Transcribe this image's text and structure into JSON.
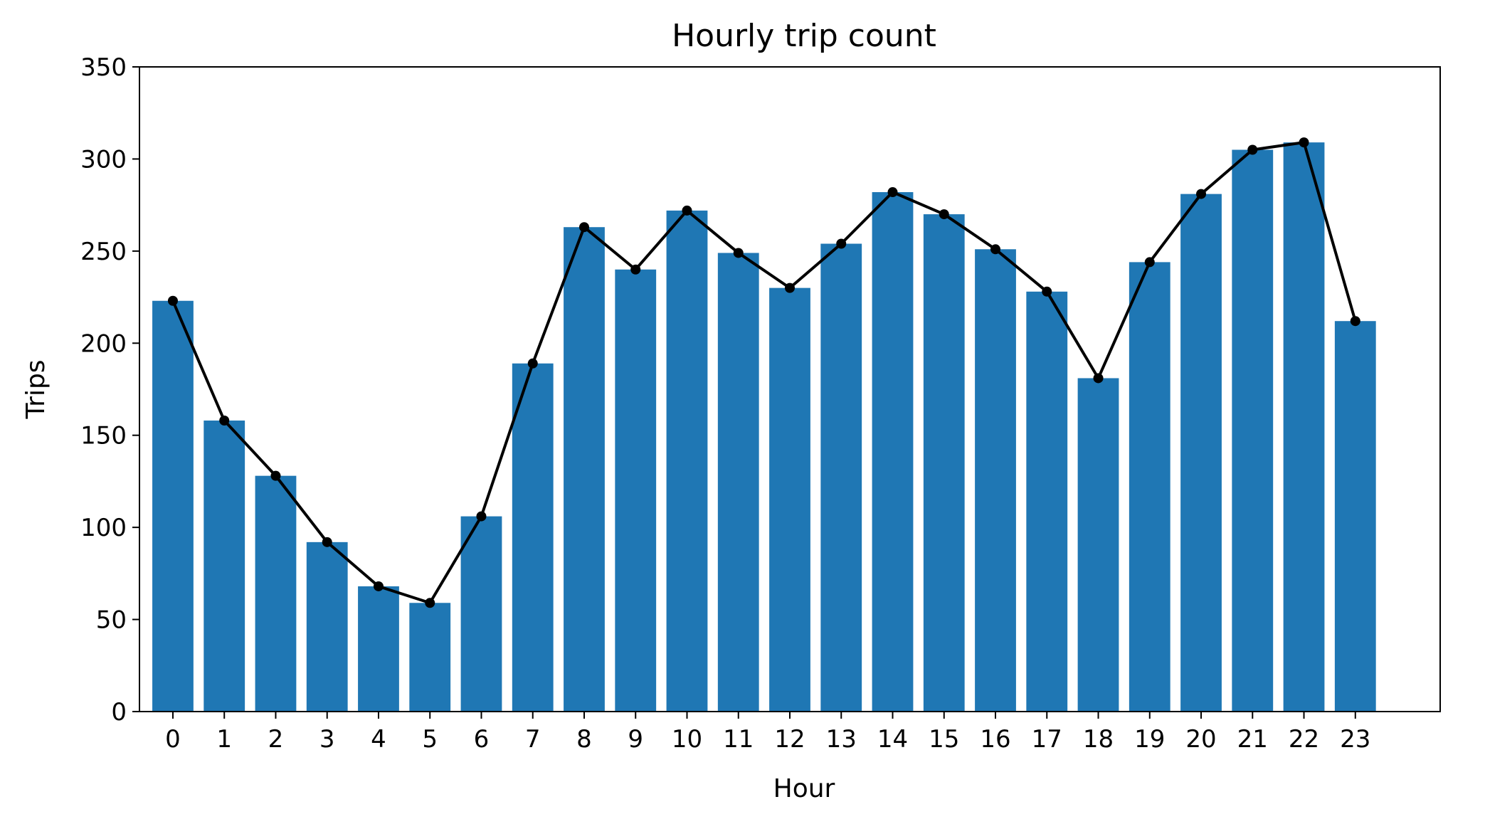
{
  "chart_data": {
    "type": "bar",
    "title": "Hourly trip count",
    "xlabel": "Hour",
    "ylabel": "Trips",
    "categories": [
      "0",
      "1",
      "2",
      "3",
      "4",
      "5",
      "6",
      "7",
      "8",
      "9",
      "10",
      "11",
      "12",
      "13",
      "14",
      "15",
      "16",
      "17",
      "18",
      "19",
      "20",
      "21",
      "22",
      "23"
    ],
    "values": [
      223,
      158,
      128,
      92,
      68,
      59,
      106,
      189,
      263,
      240,
      272,
      249,
      230,
      254,
      282,
      270,
      251,
      228,
      181,
      244,
      281,
      305,
      309,
      212
    ],
    "overlay_line": {
      "type": "line",
      "marker": "circle",
      "values": [
        223,
        158,
        128,
        92,
        68,
        59,
        106,
        189,
        263,
        240,
        272,
        249,
        230,
        254,
        282,
        270,
        251,
        228,
        181,
        244,
        281,
        305,
        309,
        212
      ]
    },
    "ylim": [
      0,
      350
    ],
    "yticks": [
      0,
      50,
      100,
      150,
      200,
      250,
      300,
      350
    ],
    "grid": false,
    "legend": false,
    "colors": {
      "bar": "#1f77b4",
      "line": "#000000",
      "axes": "#000000"
    }
  }
}
